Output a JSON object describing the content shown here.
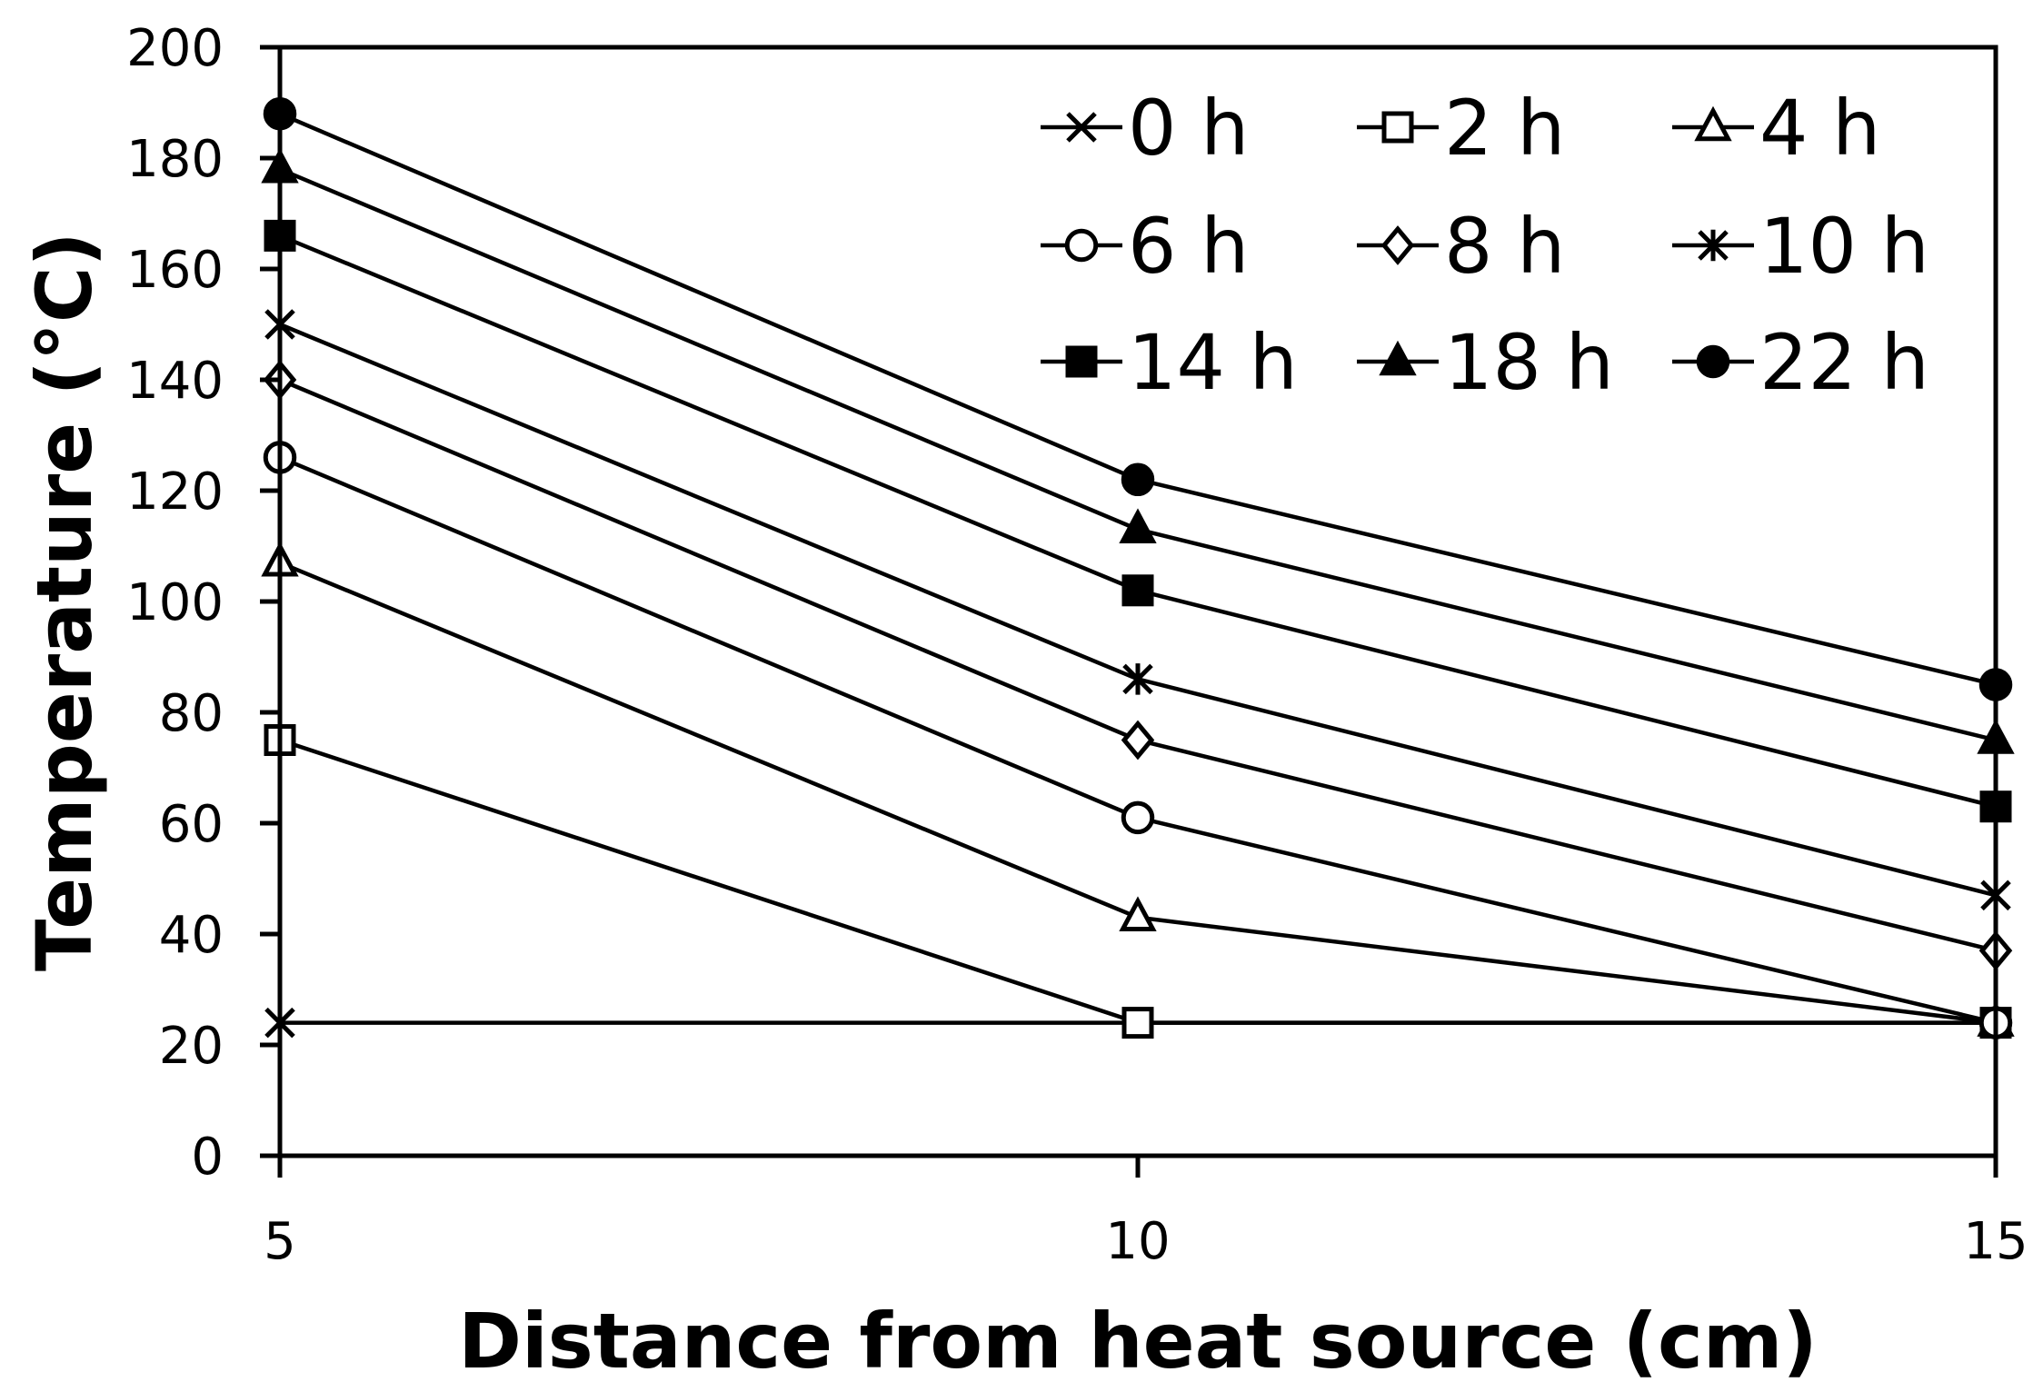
{
  "chart_data": {
    "type": "line",
    "title": "",
    "xlabel": "Distance from heat source (cm)",
    "ylabel": "Temperature (°C)",
    "x": [
      5,
      10,
      15
    ],
    "xticks": [
      "5",
      "10",
      "15"
    ],
    "xlim": [
      5,
      15
    ],
    "ylim": [
      0,
      200
    ],
    "yticks": [
      "0",
      "20",
      "40",
      "60",
      "80",
      "100",
      "120",
      "140",
      "160",
      "180",
      "200"
    ],
    "grid": false,
    "legend_position": "top-right",
    "line_color": "#000000",
    "series": [
      {
        "name": "0 h",
        "marker": "x",
        "values": [
          24,
          24,
          24
        ]
      },
      {
        "name": "2 h",
        "marker": "square-open",
        "values": [
          75,
          24,
          24
        ]
      },
      {
        "name": "4 h",
        "marker": "triangle-open",
        "values": [
          107,
          43,
          24
        ]
      },
      {
        "name": "6 h",
        "marker": "circle-open",
        "values": [
          126,
          61,
          24
        ]
      },
      {
        "name": "8 h",
        "marker": "diamond-open",
        "values": [
          140,
          75,
          37
        ]
      },
      {
        "name": "10 h",
        "marker": "star",
        "values": [
          150,
          86,
          47
        ]
      },
      {
        "name": "14 h",
        "marker": "square-filled",
        "values": [
          166,
          102,
          63
        ]
      },
      {
        "name": "18 h",
        "marker": "triangle-filled",
        "values": [
          178,
          113,
          75
        ]
      },
      {
        "name": "22 h",
        "marker": "circle-filled",
        "values": [
          188,
          122,
          85
        ]
      }
    ]
  }
}
